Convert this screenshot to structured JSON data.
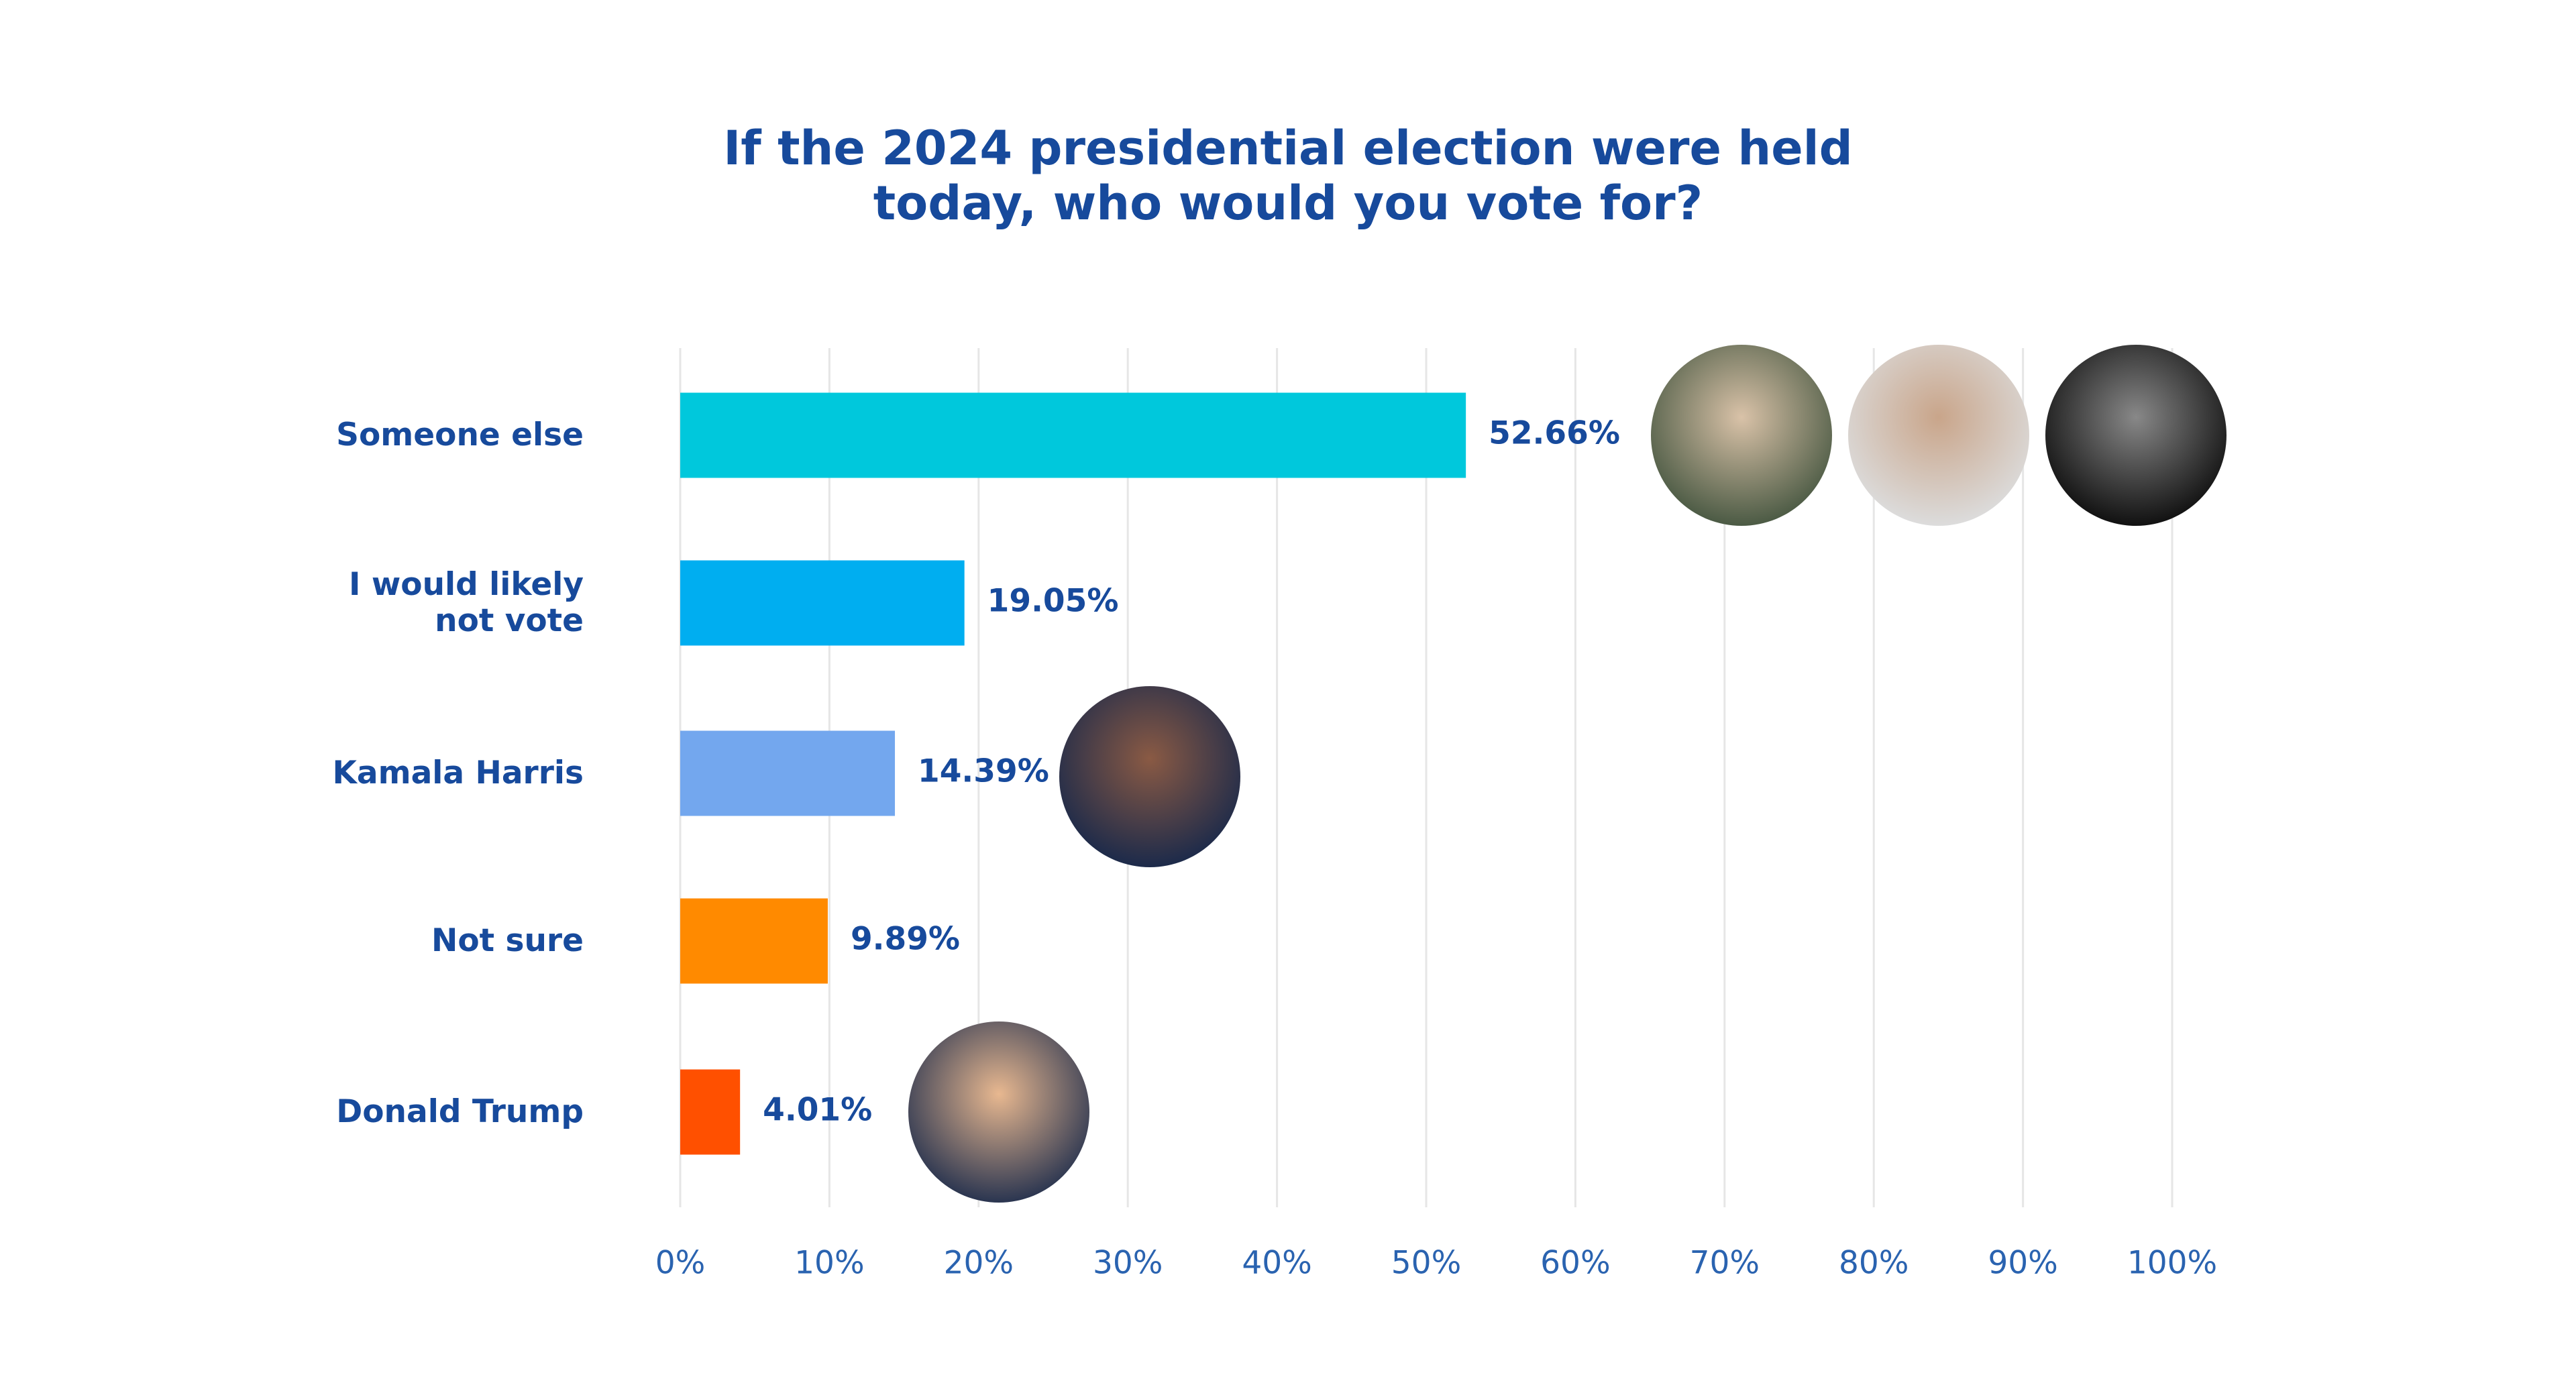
{
  "chart_data": {
    "type": "bar",
    "orientation": "horizontal",
    "title": "If the 2024 presidential election were held today, who would you vote for?",
    "categories": [
      "Someone else",
      "I would likely not vote",
      "Kamala Harris",
      "Not sure",
      "Donald Trump"
    ],
    "values": [
      52.66,
      19.05,
      14.39,
      9.89,
      4.01
    ],
    "value_labels": [
      "52.66%",
      "19.05%",
      "14.39%",
      "9.89%",
      "4.01%"
    ],
    "colors": [
      "#00c8dc",
      "#00aef0",
      "#73a7ee",
      "#ff8a00",
      "#ff5000"
    ],
    "xlim": [
      0,
      100
    ],
    "xticks": [
      {
        "value": 0,
        "label": "0%"
      },
      {
        "value": 10,
        "label": "10%"
      },
      {
        "value": 20,
        "label": "20%"
      },
      {
        "value": 30,
        "label": "30%"
      },
      {
        "value": 40,
        "label": "40%"
      },
      {
        "value": 50,
        "label": "50%"
      },
      {
        "value": 60,
        "label": "60%"
      },
      {
        "value": 70,
        "label": "70%"
      },
      {
        "value": 80,
        "label": "80%"
      },
      {
        "value": 90,
        "label": "90%"
      },
      {
        "value": 100,
        "label": "100%"
      }
    ],
    "grid": true
  }
}
